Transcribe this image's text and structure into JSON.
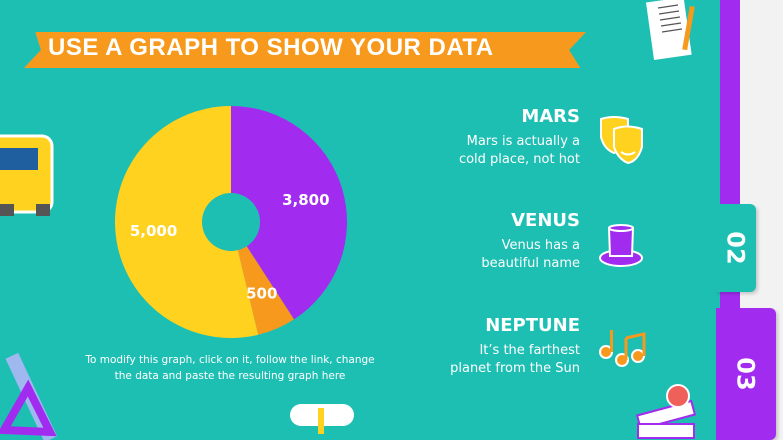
{
  "title": "USE A GRAPH TO SHOW YOUR DATA",
  "note": [
    "To modify this graph, click on it, follow the link, change",
    "the data and paste the resulting graph here"
  ],
  "items": [
    {
      "title": "MARS",
      "desc": [
        "Mars is actually a",
        "cold place, not hot"
      ],
      "icon": "theater-masks-icon",
      "color": "#ffd21f"
    },
    {
      "title": "VENUS",
      "desc": [
        "Venus has a",
        "beautiful name"
      ],
      "icon": "top-hat-icon",
      "color": "#a12cf0"
    },
    {
      "title": "NEPTUNE",
      "desc": [
        "It’s the farthest",
        "planet from the Sun"
      ],
      "icon": "music-notes-icon",
      "color": "#f7991c"
    }
  ],
  "tabs": [
    "02",
    "03"
  ],
  "colors": {
    "background": "#1ebfb3",
    "accent_purple": "#a12cf0",
    "accent_orange": "#f7991c",
    "accent_yellow": "#ffd21f"
  },
  "chart_data": {
    "type": "pie",
    "donut": true,
    "categories": [
      "",
      "",
      ""
    ],
    "values": [
      3800,
      500,
      5000
    ],
    "labels": [
      "3,800",
      "500",
      "5,000"
    ],
    "colors": [
      "#a12cf0",
      "#f7991c",
      "#ffd21f"
    ]
  }
}
